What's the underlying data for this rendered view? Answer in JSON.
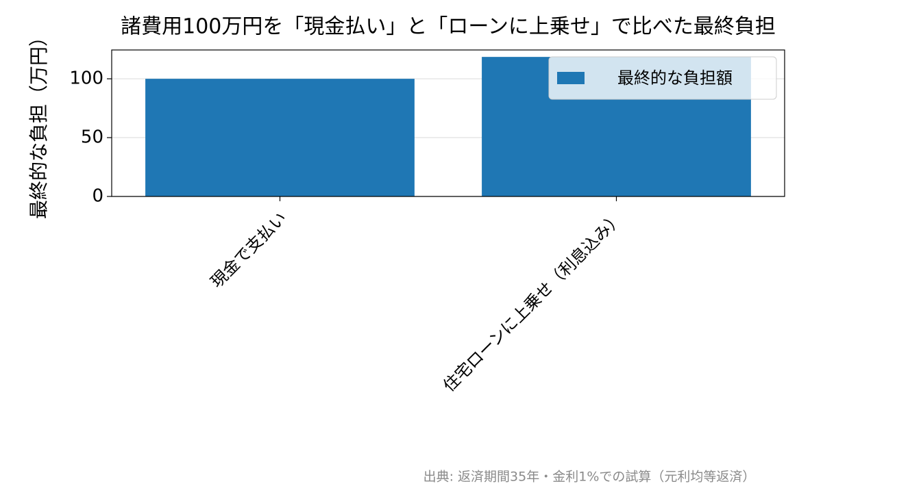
{
  "chart_data": {
    "type": "bar",
    "title": "諸費用100万円を「現金払い」と「ローンに上乗せ」で比べた最終負担",
    "y_label": "最終的な負担（万円）",
    "categories": [
      "現金で支払い",
      "住宅ローンに上乗せ（利息込み）"
    ],
    "series": [
      {
        "name": "最終的な負担額",
        "color": "#1f77b4",
        "values": [
          100,
          118.6
        ]
      }
    ],
    "ylim": [
      0,
      124.5
    ],
    "yticks": [
      0,
      50,
      100
    ],
    "grid": true,
    "legend": "upper right",
    "source": "出典: 返済期間35年・金利1%での試算（元利均等返済）"
  }
}
